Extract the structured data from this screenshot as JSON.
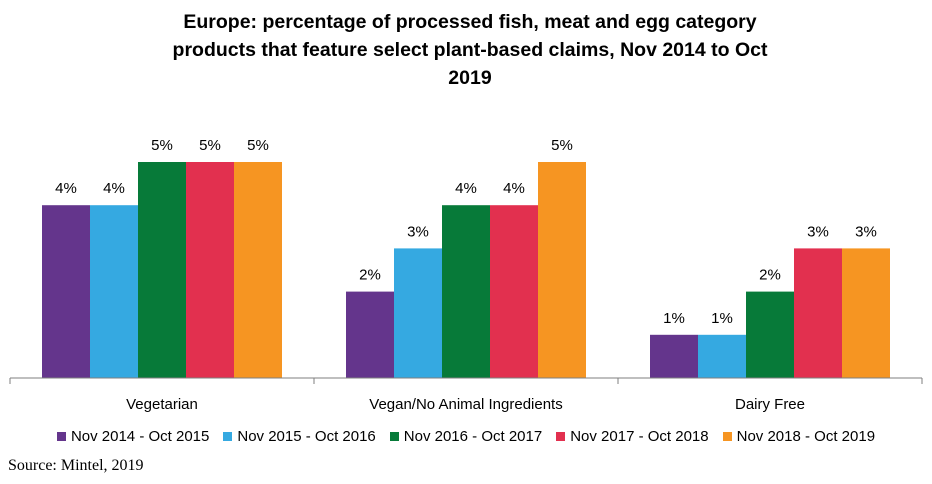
{
  "chart_data": {
    "type": "bar",
    "title_lines": [
      "Europe: percentage of processed fish, meat and egg category",
      "products that feature select plant-based claims, Nov 2014 to Oct",
      "2019"
    ],
    "categories": [
      "Vegetarian",
      "Vegan/No Animal Ingredients",
      "Dairy Free"
    ],
    "series": [
      {
        "name": "Nov 2014 - Oct 2015",
        "color": "#64358c",
        "values": [
          4,
          2,
          1
        ]
      },
      {
        "name": "Nov 2015 - Oct 2016",
        "color": "#35a9e1",
        "values": [
          4,
          3,
          1
        ]
      },
      {
        "name": "Nov 2016 - Oct 2017",
        "color": "#077a39",
        "values": [
          5,
          4,
          2
        ]
      },
      {
        "name": "Nov 2017 - Oct 2018",
        "color": "#e2304f",
        "values": [
          5,
          4,
          3
        ]
      },
      {
        "name": "Nov 2018 - Oct 2019",
        "color": "#f69522",
        "values": [
          5,
          5,
          3
        ]
      }
    ],
    "value_suffix": "%",
    "ylim": [
      0,
      5
    ],
    "legend_position": "bottom",
    "grid": false,
    "source": "Source: Mintel, 2019"
  }
}
